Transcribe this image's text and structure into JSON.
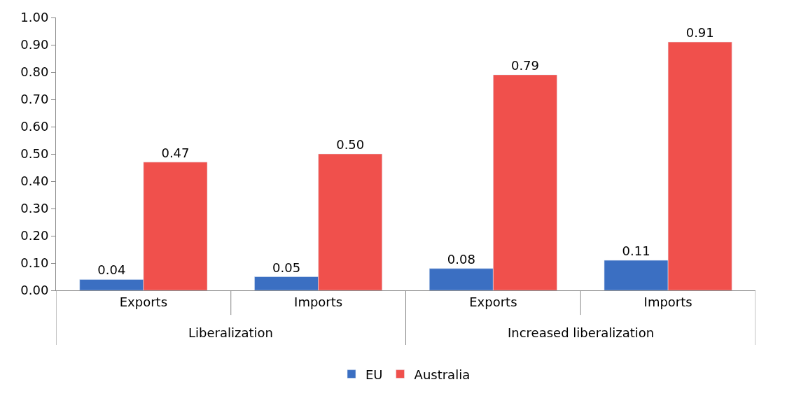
{
  "chart_data": {
    "type": "bar",
    "categories": [
      "Exports",
      "Imports",
      "Exports",
      "Imports"
    ],
    "series": [
      {
        "name": "EU",
        "color": "#3b6fc2",
        "values": [
          0.04,
          0.05,
          0.08,
          0.11
        ],
        "value_labels": [
          "0.04",
          "0.05",
          "0.08",
          "0.11"
        ]
      },
      {
        "name": "Australia",
        "color": "#f0504c",
        "values": [
          0.47,
          0.5,
          0.79,
          0.91
        ],
        "value_labels": [
          "0.47",
          "0.50",
          "0.79",
          "0.91"
        ]
      }
    ],
    "annotations": [
      "Liberalization",
      "Increased liberalization"
    ],
    "ylim": [
      0,
      1
    ],
    "yticks": [
      {
        "value": 0,
        "label": "0.00"
      },
      {
        "value": 0.1,
        "label": "0.10"
      },
      {
        "value": 0.2,
        "label": "0.20"
      },
      {
        "value": 0.3,
        "label": "0.30"
      },
      {
        "value": 0.4,
        "label": "0.40"
      },
      {
        "value": 0.5,
        "label": "0.50"
      },
      {
        "value": 0.6,
        "label": "0.60"
      },
      {
        "value": 0.7,
        "label": "0.70"
      },
      {
        "value": 0.8,
        "label": "0.80"
      },
      {
        "value": 0.9,
        "label": "0.90"
      },
      {
        "value": 1,
        "label": "1.00"
      }
    ],
    "legend": "bottom"
  }
}
